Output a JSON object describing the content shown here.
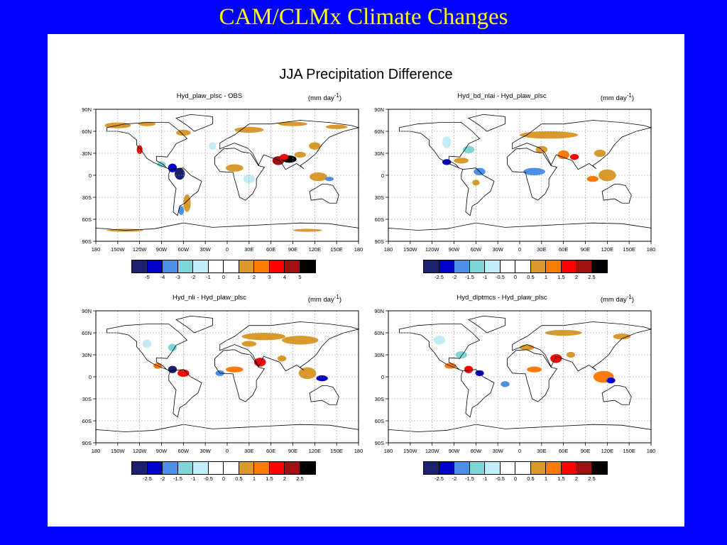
{
  "slide_title": "CAM/CLMx Climate Changes",
  "figure_title": "JJA Precipitation Difference",
  "units_label": "(mm day",
  "units_exp": "-1",
  "units_close": ")",
  "lat_labels": [
    "90N",
    "60N",
    "30N",
    "0",
    "30S",
    "60S",
    "90S"
  ],
  "lon_labels": [
    "180",
    "150W",
    "120W",
    "90W",
    "60W",
    "30W",
    "0",
    "30E",
    "60E",
    "90E",
    "120E",
    "150E",
    "180"
  ],
  "colorbar_colors": [
    "#1a1f6e",
    "#0000cc",
    "#4d8fe6",
    "#7fd6d6",
    "#c2ecf7",
    "#ffffff",
    "#ffffff",
    "#d99a2b",
    "#ff7a00",
    "#ff0000",
    "#a01010",
    "#000000"
  ],
  "maps": [
    {
      "title": "Hyd_plaw_plsc - OBS",
      "colorbar_labels": [
        "-5",
        "-4",
        "-3",
        "-2",
        "-1",
        "0",
        "1",
        "2",
        "3",
        "4",
        "5"
      ]
    },
    {
      "title": "Hyd_bd_nlai - Hyd_plaw_plsc",
      "colorbar_labels": [
        "-2.5",
        "-2",
        "-1.5",
        "-1",
        "-0.5",
        "0",
        "0.5",
        "1",
        "1.5",
        "2",
        "2.5"
      ]
    },
    {
      "title": "Hyd_nli - Hyd_plaw_plsc",
      "colorbar_labels": [
        "-2.5",
        "-2",
        "-1.5",
        "-1",
        "-0.5",
        "0",
        "0.5",
        "1",
        "1.5",
        "2",
        "2.5"
      ]
    },
    {
      "title": "Hyd_dlptmcs - Hyd_plaw_plsc",
      "colorbar_labels": [
        "-2.5",
        "-2",
        "-1.5",
        "-1",
        "-0.5",
        "0",
        "0.5",
        "1",
        "1.5",
        "2",
        "2.5"
      ]
    }
  ]
}
